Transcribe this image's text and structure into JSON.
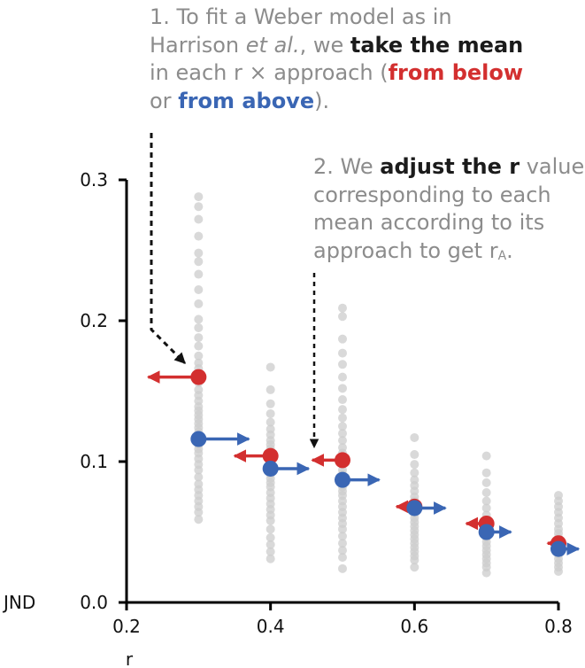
{
  "annotations": {
    "step1": {
      "l1": "1. To fit a Weber model as in",
      "l2a": "Harrison ",
      "l2b": "et al.",
      "l2c": ", we ",
      "l2d": "take the mean",
      "l3a": "in each r × approach (",
      "l3b": "from below",
      "l4a": "or ",
      "l4b": "from above",
      "l4c": ")."
    },
    "step2": {
      "l1a": "2. We ",
      "l1b": "adjust the r",
      "l1c": " value",
      "l2": "corresponding to each",
      "l3": "mean according to its",
      "l4a": "approach to get r",
      "l4b": "A",
      "l4c": "."
    }
  },
  "chart_data": {
    "type": "scatter",
    "xlabel": "r",
    "ylabel": "JND",
    "xlim": [
      0.2,
      0.8
    ],
    "ylim": [
      0.0,
      0.3
    ],
    "x_ticks": [
      "0.2",
      "0.4",
      "0.6",
      "0.8"
    ],
    "y_ticks": [
      "0.0",
      "0.1",
      "0.2",
      "0.3"
    ],
    "colors": {
      "below": "#d32f2f",
      "above": "#3a66b4",
      "raw": "#cccccc",
      "axis": "#000000"
    },
    "raw_points": [
      {
        "x": 0.3,
        "y": [
          0.288,
          0.281,
          0.272,
          0.26,
          0.248,
          0.242,
          0.233,
          0.222,
          0.212,
          0.201,
          0.195,
          0.188,
          0.182,
          0.175,
          0.17,
          0.166,
          0.161,
          0.156,
          0.151,
          0.147,
          0.143,
          0.139,
          0.136,
          0.133,
          0.13,
          0.127,
          0.124,
          0.121,
          0.118,
          0.115,
          0.112,
          0.109,
          0.106,
          0.102,
          0.098,
          0.094,
          0.089,
          0.084,
          0.08,
          0.076,
          0.072,
          0.068,
          0.064,
          0.059
        ]
      },
      {
        "x": 0.4,
        "y": [
          0.167,
          0.151,
          0.141,
          0.134,
          0.128,
          0.123,
          0.119,
          0.115,
          0.112,
          0.109,
          0.106,
          0.103,
          0.1,
          0.097,
          0.094,
          0.091,
          0.088,
          0.085,
          0.082,
          0.078,
          0.074,
          0.07,
          0.066,
          0.062,
          0.058,
          0.052,
          0.046,
          0.041,
          0.036,
          0.031
        ]
      },
      {
        "x": 0.5,
        "y": [
          0.209,
          0.203,
          0.187,
          0.177,
          0.169,
          0.16,
          0.152,
          0.144,
          0.137,
          0.131,
          0.125,
          0.12,
          0.115,
          0.11,
          0.106,
          0.102,
          0.098,
          0.094,
          0.091,
          0.088,
          0.085,
          0.082,
          0.079,
          0.076,
          0.072,
          0.068,
          0.064,
          0.06,
          0.056,
          0.052,
          0.047,
          0.042,
          0.037,
          0.032,
          0.024
        ]
      },
      {
        "x": 0.6,
        "y": [
          0.117,
          0.105,
          0.098,
          0.092,
          0.087,
          0.083,
          0.079,
          0.075,
          0.072,
          0.069,
          0.066,
          0.063,
          0.06,
          0.057,
          0.054,
          0.051,
          0.048,
          0.045,
          0.042,
          0.039,
          0.036,
          0.033,
          0.03,
          0.025
        ]
      },
      {
        "x": 0.7,
        "y": [
          0.104,
          0.092,
          0.085,
          0.078,
          0.072,
          0.067,
          0.062,
          0.058,
          0.055,
          0.052,
          0.049,
          0.046,
          0.043,
          0.04,
          0.037,
          0.034,
          0.031,
          0.028,
          0.025,
          0.021
        ]
      },
      {
        "x": 0.8,
        "y": [
          0.076,
          0.072,
          0.068,
          0.064,
          0.06,
          0.056,
          0.052,
          0.049,
          0.046,
          0.043,
          0.04,
          0.037,
          0.034,
          0.031,
          0.028,
          0.025,
          0.022
        ]
      }
    ],
    "means": [
      {
        "approach": "from below",
        "x": 0.3,
        "y": 0.16,
        "x_adjusted": 0.23
      },
      {
        "approach": "from above",
        "x": 0.3,
        "y": 0.116,
        "x_adjusted": 0.37
      },
      {
        "approach": "from below",
        "x": 0.4,
        "y": 0.104,
        "x_adjusted": 0.35
      },
      {
        "approach": "from above",
        "x": 0.4,
        "y": 0.095,
        "x_adjusted": 0.453
      },
      {
        "approach": "from below",
        "x": 0.5,
        "y": 0.101,
        "x_adjusted": 0.458
      },
      {
        "approach": "from above",
        "x": 0.5,
        "y": 0.087,
        "x_adjusted": 0.551
      },
      {
        "approach": "from below",
        "x": 0.6,
        "y": 0.068,
        "x_adjusted": 0.575
      },
      {
        "approach": "from above",
        "x": 0.6,
        "y": 0.067,
        "x_adjusted": 0.643
      },
      {
        "approach": "from below",
        "x": 0.7,
        "y": 0.056,
        "x_adjusted": 0.672
      },
      {
        "approach": "from above",
        "x": 0.7,
        "y": 0.05,
        "x_adjusted": 0.734
      },
      {
        "approach": "from below",
        "x": 0.8,
        "y": 0.042,
        "x_adjusted": 0.785
      },
      {
        "approach": "from above",
        "x": 0.8,
        "y": 0.038,
        "x_adjusted": 0.828
      }
    ]
  }
}
